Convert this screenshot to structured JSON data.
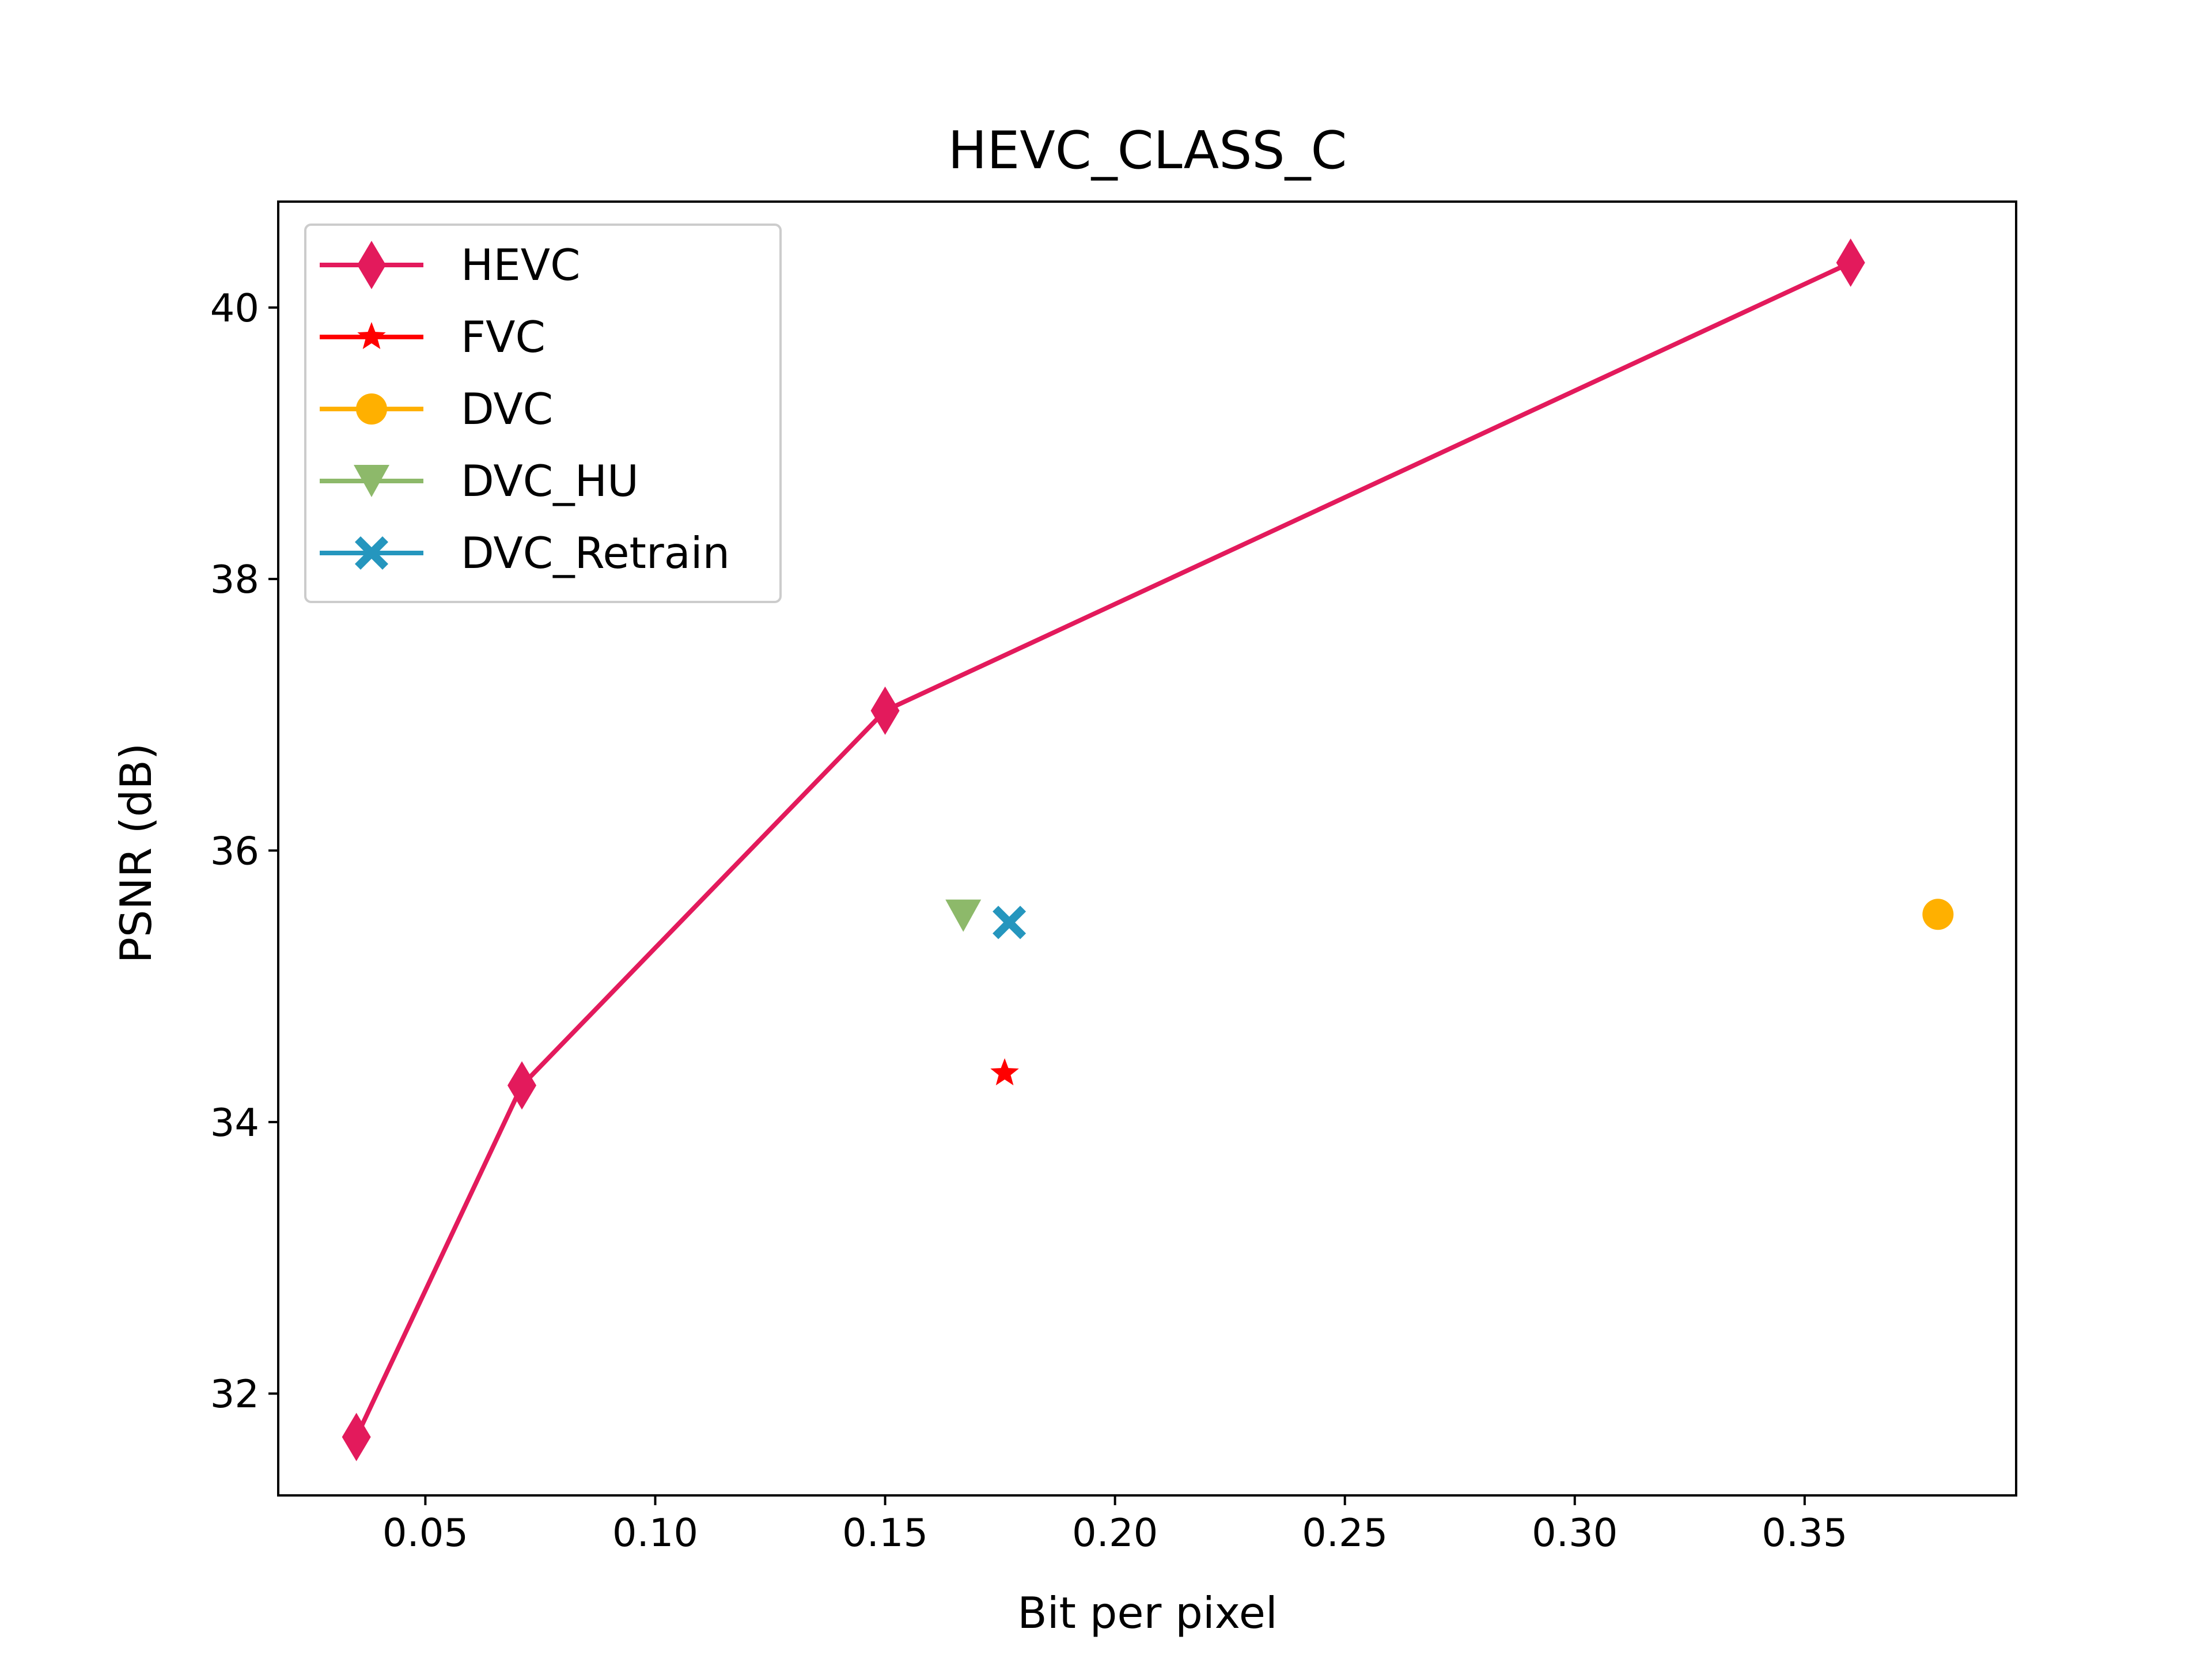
{
  "chart_data": {
    "type": "line",
    "title": "HEVC_CLASS_C",
    "xlabel": "Bit per pixel",
    "ylabel": "PSNR (dB)",
    "xlim": [
      0.018,
      0.396
    ],
    "ylim": [
      31.25,
      40.78
    ],
    "xticks": [
      0.05,
      0.1,
      0.15,
      0.2,
      0.25,
      0.3,
      0.35
    ],
    "xtick_labels": [
      "0.05",
      "0.10",
      "0.15",
      "0.20",
      "0.25",
      "0.30",
      "0.35"
    ],
    "yticks": [
      32,
      34,
      36,
      38,
      40
    ],
    "ytick_labels": [
      "32",
      "34",
      "36",
      "38",
      "40"
    ],
    "grid": false,
    "legend_position": "top-left",
    "series": [
      {
        "name": "HEVC",
        "marker": "diamond",
        "color": "#e31a5c",
        "line": true,
        "x": [
          0.035,
          0.071,
          0.15,
          0.36
        ],
        "y": [
          31.68,
          34.27,
          37.03,
          40.33
        ]
      },
      {
        "name": "FVC",
        "marker": "star",
        "color": "#ff0000",
        "line": false,
        "x": [
          0.176
        ],
        "y": [
          34.36
        ]
      },
      {
        "name": "DVC",
        "marker": "circle",
        "color": "#ffb000",
        "line": false,
        "x": [
          0.379
        ],
        "y": [
          35.53
        ]
      },
      {
        "name": "DVC_HU",
        "marker": "triangle-down",
        "color": "#8db96a",
        "line": false,
        "x": [
          0.167
        ],
        "y": [
          35.52
        ]
      },
      {
        "name": "DVC_Retrain",
        "marker": "x-filled",
        "color": "#2596be",
        "line": false,
        "x": [
          0.177
        ],
        "y": [
          35.47
        ]
      }
    ]
  }
}
